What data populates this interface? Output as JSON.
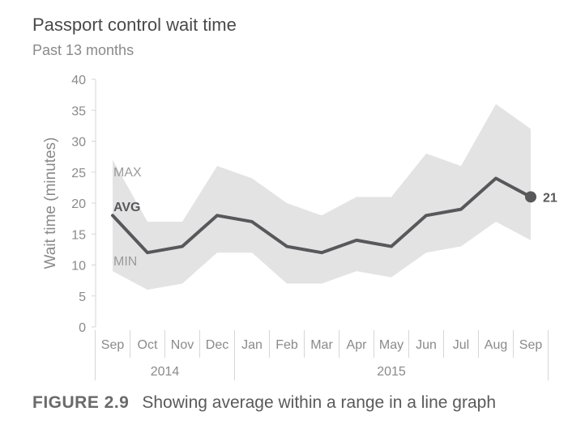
{
  "chart_data": {
    "type": "area",
    "title": "Passport control wait time",
    "subtitle": "Past 13 months",
    "ylabel": "Wait time (minutes)",
    "xlabel": "",
    "ylim": [
      0,
      40
    ],
    "yticks": [
      0,
      5,
      10,
      15,
      20,
      25,
      30,
      35,
      40
    ],
    "categories": [
      "Sep",
      "Oct",
      "Nov",
      "Dec",
      "Jan",
      "Feb",
      "Mar",
      "Apr",
      "May",
      "Jun",
      "Jul",
      "Aug",
      "Sep"
    ],
    "year_groups": [
      {
        "label": "2014",
        "start": 0,
        "end": 3
      },
      {
        "label": "2015",
        "start": 4,
        "end": 12
      }
    ],
    "series": [
      {
        "name": "MAX",
        "values": [
          27,
          17,
          17,
          26,
          24,
          20,
          18,
          21,
          21,
          28,
          26,
          36,
          32
        ]
      },
      {
        "name": "AVG",
        "values": [
          18,
          12,
          13,
          18,
          17,
          13,
          12,
          14,
          13,
          18,
          19,
          24,
          21
        ]
      },
      {
        "name": "MIN",
        "values": [
          9,
          6,
          7,
          12,
          12,
          7,
          7,
          9,
          8,
          12,
          13,
          17,
          14
        ]
      }
    ],
    "end_label": "21",
    "grid": false,
    "colors": {
      "range": "#e3e3e4",
      "avg": "#58585b",
      "text": "#8a8a8a",
      "axis": "#d6d6d6"
    }
  },
  "caption": {
    "figure": "FIGURE 2.9",
    "text": "Showing average within a range in a line graph"
  }
}
